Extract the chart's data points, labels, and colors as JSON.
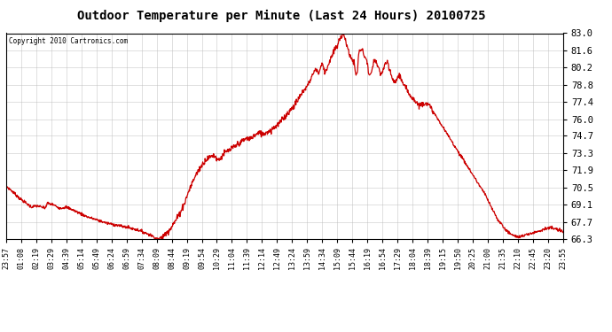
{
  "title": "Outdoor Temperature per Minute (Last 24 Hours) 20100725",
  "copyright": "Copyright 2010 Cartronics.com",
  "line_color": "#cc0000",
  "bg_color": "#ffffff",
  "plot_bg_color": "#ffffff",
  "grid_color": "#bbbbbb",
  "yticks": [
    66.3,
    67.7,
    69.1,
    70.5,
    71.9,
    73.3,
    74.7,
    76.0,
    77.4,
    78.8,
    80.2,
    81.6,
    83.0
  ],
  "ymin": 66.3,
  "ymax": 83.0,
  "xtick_labels": [
    "23:57",
    "01:08",
    "02:19",
    "03:29",
    "04:39",
    "05:14",
    "05:49",
    "06:24",
    "06:59",
    "07:34",
    "08:09",
    "08:44",
    "09:19",
    "09:54",
    "10:29",
    "11:04",
    "11:39",
    "12:14",
    "12:49",
    "13:24",
    "13:59",
    "14:34",
    "15:09",
    "15:44",
    "16:19",
    "16:54",
    "17:29",
    "18:04",
    "18:39",
    "19:15",
    "19:50",
    "20:25",
    "21:00",
    "21:35",
    "22:10",
    "22:45",
    "23:20",
    "23:55"
  ],
  "keypoints": [
    [
      0,
      70.6
    ],
    [
      15,
      70.2
    ],
    [
      35,
      69.6
    ],
    [
      65,
      68.9
    ],
    [
      80,
      69.0
    ],
    [
      100,
      68.8
    ],
    [
      107,
      69.2
    ],
    [
      120,
      69.1
    ],
    [
      140,
      68.8
    ],
    [
      155,
      68.9
    ],
    [
      170,
      68.7
    ],
    [
      190,
      68.4
    ],
    [
      210,
      68.1
    ],
    [
      230,
      67.9
    ],
    [
      260,
      67.6
    ],
    [
      290,
      67.4
    ],
    [
      320,
      67.2
    ],
    [
      345,
      67.0
    ],
    [
      360,
      66.8
    ],
    [
      375,
      66.6
    ],
    [
      385,
      66.4
    ],
    [
      395,
      66.3
    ],
    [
      405,
      66.5
    ],
    [
      415,
      66.8
    ],
    [
      425,
      67.2
    ],
    [
      438,
      67.8
    ],
    [
      450,
      68.5
    ],
    [
      462,
      69.3
    ],
    [
      472,
      70.2
    ],
    [
      480,
      70.8
    ],
    [
      490,
      71.5
    ],
    [
      500,
      72.0
    ],
    [
      510,
      72.5
    ],
    [
      518,
      72.8
    ],
    [
      525,
      72.9
    ],
    [
      533,
      73.1
    ],
    [
      540,
      73.0
    ],
    [
      548,
      72.7
    ],
    [
      555,
      72.9
    ],
    [
      562,
      73.2
    ],
    [
      570,
      73.4
    ],
    [
      578,
      73.5
    ],
    [
      585,
      73.7
    ],
    [
      592,
      73.8
    ],
    [
      598,
      74.0
    ],
    [
      605,
      74.1
    ],
    [
      612,
      74.3
    ],
    [
      618,
      74.4
    ],
    [
      624,
      74.5
    ],
    [
      630,
      74.4
    ],
    [
      636,
      74.6
    ],
    [
      642,
      74.7
    ],
    [
      648,
      74.8
    ],
    [
      655,
      74.9
    ],
    [
      662,
      74.8
    ],
    [
      668,
      74.9
    ],
    [
      675,
      75.0
    ],
    [
      682,
      75.1
    ],
    [
      690,
      75.3
    ],
    [
      698,
      75.5
    ],
    [
      706,
      75.7
    ],
    [
      714,
      76.0
    ],
    [
      722,
      76.3
    ],
    [
      730,
      76.6
    ],
    [
      738,
      76.9
    ],
    [
      746,
      77.2
    ],
    [
      754,
      77.6
    ],
    [
      762,
      78.0
    ],
    [
      770,
      78.4
    ],
    [
      778,
      78.7
    ],
    [
      784,
      79.1
    ],
    [
      790,
      79.5
    ],
    [
      796,
      79.9
    ],
    [
      800,
      80.1
    ],
    [
      804,
      80.0
    ],
    [
      808,
      79.7
    ],
    [
      812,
      80.2
    ],
    [
      816,
      80.5
    ],
    [
      820,
      80.3
    ],
    [
      824,
      79.8
    ],
    [
      828,
      80.1
    ],
    [
      832,
      80.4
    ],
    [
      836,
      80.7
    ],
    [
      840,
      81.0
    ],
    [
      844,
      81.3
    ],
    [
      848,
      81.6
    ],
    [
      852,
      81.8
    ],
    [
      856,
      82.0
    ],
    [
      860,
      82.3
    ],
    [
      864,
      82.6
    ],
    [
      868,
      82.9
    ],
    [
      872,
      83.0
    ],
    [
      874,
      82.8
    ],
    [
      877,
      82.4
    ],
    [
      880,
      82.0
    ],
    [
      883,
      81.7
    ],
    [
      886,
      81.4
    ],
    [
      889,
      81.2
    ],
    [
      892,
      81.0
    ],
    [
      896,
      80.7
    ],
    [
      900,
      80.5
    ],
    [
      904,
      79.5
    ],
    [
      907,
      79.8
    ],
    [
      912,
      81.5
    ],
    [
      916,
      81.7
    ],
    [
      920,
      81.6
    ],
    [
      924,
      81.3
    ],
    [
      928,
      81.0
    ],
    [
      932,
      80.8
    ],
    [
      936,
      79.9
    ],
    [
      940,
      79.5
    ],
    [
      944,
      79.7
    ],
    [
      948,
      80.5
    ],
    [
      952,
      80.8
    ],
    [
      956,
      80.6
    ],
    [
      960,
      80.3
    ],
    [
      964,
      80.0
    ],
    [
      968,
      79.6
    ],
    [
      972,
      79.9
    ],
    [
      976,
      80.2
    ],
    [
      980,
      80.5
    ],
    [
      984,
      80.6
    ],
    [
      988,
      80.3
    ],
    [
      992,
      79.9
    ],
    [
      996,
      79.5
    ],
    [
      1000,
      79.2
    ],
    [
      1004,
      78.9
    ],
    [
      1008,
      79.2
    ],
    [
      1012,
      79.5
    ],
    [
      1016,
      79.6
    ],
    [
      1020,
      79.4
    ],
    [
      1024,
      79.0
    ],
    [
      1028,
      78.7
    ],
    [
      1036,
      78.4
    ],
    [
      1044,
      78.0
    ],
    [
      1052,
      77.7
    ],
    [
      1060,
      77.4
    ],
    [
      1068,
      77.1
    ],
    [
      1076,
      77.3
    ],
    [
      1084,
      77.4
    ],
    [
      1090,
      77.2
    ],
    [
      1096,
      77.0
    ],
    [
      1102,
      76.7
    ],
    [
      1108,
      76.4
    ],
    [
      1114,
      76.1
    ],
    [
      1120,
      75.8
    ],
    [
      1128,
      75.4
    ],
    [
      1136,
      75.0
    ],
    [
      1144,
      74.6
    ],
    [
      1152,
      74.2
    ],
    [
      1160,
      73.8
    ],
    [
      1168,
      73.4
    ],
    [
      1176,
      73.0
    ],
    [
      1184,
      72.6
    ],
    [
      1190,
      72.3
    ],
    [
      1196,
      72.0
    ],
    [
      1202,
      71.7
    ],
    [
      1208,
      71.4
    ],
    [
      1214,
      71.1
    ],
    [
      1220,
      70.8
    ],
    [
      1226,
      70.5
    ],
    [
      1232,
      70.2
    ],
    [
      1238,
      69.9
    ],
    [
      1244,
      69.5
    ],
    [
      1250,
      69.1
    ],
    [
      1255,
      68.8
    ],
    [
      1260,
      68.5
    ],
    [
      1265,
      68.2
    ],
    [
      1270,
      67.9
    ],
    [
      1275,
      67.7
    ],
    [
      1280,
      67.5
    ],
    [
      1285,
      67.3
    ],
    [
      1290,
      67.1
    ],
    [
      1295,
      66.9
    ],
    [
      1300,
      66.8
    ],
    [
      1305,
      66.7
    ],
    [
      1310,
      66.6
    ],
    [
      1320,
      66.5
    ],
    [
      1330,
      66.5
    ],
    [
      1340,
      66.6
    ],
    [
      1350,
      66.7
    ],
    [
      1360,
      66.8
    ],
    [
      1370,
      66.9
    ],
    [
      1380,
      67.0
    ],
    [
      1390,
      67.1
    ],
    [
      1400,
      67.2
    ],
    [
      1410,
      67.2
    ],
    [
      1420,
      67.1
    ],
    [
      1430,
      67.0
    ],
    [
      1439,
      66.9
    ]
  ]
}
